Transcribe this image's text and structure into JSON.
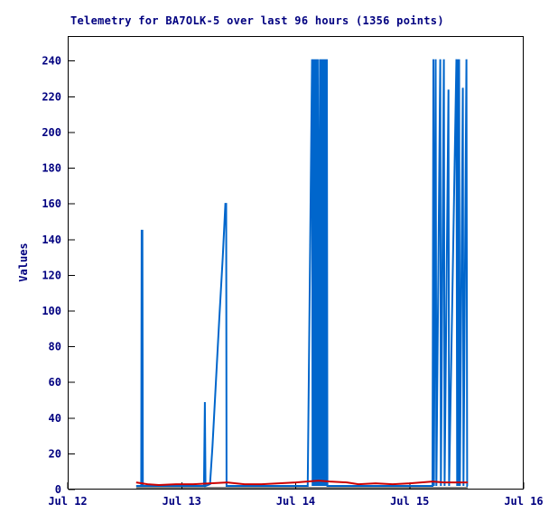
{
  "colors": {
    "background": "#ffffff",
    "frame": "#000000",
    "text": "#000080",
    "series_blue": "#0066cc",
    "series_red": "#cc0000",
    "series_black": "#000000"
  },
  "chart_data": {
    "type": "line",
    "title": "Telemetry for BA7OLK-5 over last 96 hours (1356 points)",
    "ylabel": "Values",
    "xlabel": "",
    "grid": false,
    "legend": "none",
    "x_axis": {
      "min": 0,
      "max": 4,
      "tick_values": [
        0,
        1,
        2,
        3,
        4
      ],
      "tick_labels": [
        "Jul 12",
        "Jul 13",
        "Jul 14",
        "Jul 15",
        "Jul 16"
      ]
    },
    "y_axis": {
      "min": 0,
      "max": 254,
      "tick_min": 0,
      "tick_max": 240,
      "tick_step": 20
    },
    "series": [
      {
        "name": "telemetry-blue",
        "color": "#0066cc",
        "width": 2,
        "points": [
          [
            0.6,
            2
          ],
          [
            0.645,
            2
          ],
          [
            0.649,
            145
          ],
          [
            0.655,
            145
          ],
          [
            0.659,
            2
          ],
          [
            1.195,
            2
          ],
          [
            1.203,
            49
          ],
          [
            1.209,
            2
          ],
          [
            1.248,
            3
          ],
          [
            1.27,
            24
          ],
          [
            1.3,
            60
          ],
          [
            1.33,
            96
          ],
          [
            1.36,
            130
          ],
          [
            1.383,
            160
          ],
          [
            1.39,
            160
          ],
          [
            1.393,
            2
          ],
          [
            2.105,
            2
          ],
          [
            2.143,
            241
          ],
          [
            2.148,
            2
          ],
          [
            2.153,
            241
          ],
          [
            2.158,
            2
          ],
          [
            2.163,
            241
          ],
          [
            2.168,
            2
          ],
          [
            2.173,
            241
          ],
          [
            2.178,
            2
          ],
          [
            2.183,
            241
          ],
          [
            2.188,
            2
          ],
          [
            2.193,
            241
          ],
          [
            2.198,
            145
          ],
          [
            2.203,
            2
          ],
          [
            2.208,
            145
          ],
          [
            2.213,
            241
          ],
          [
            2.218,
            2
          ],
          [
            2.223,
            241
          ],
          [
            2.228,
            2
          ],
          [
            2.233,
            241
          ],
          [
            2.238,
            2
          ],
          [
            2.243,
            241
          ],
          [
            2.248,
            2
          ],
          [
            2.253,
            241
          ],
          [
            2.258,
            2
          ],
          [
            2.263,
            241
          ],
          [
            2.268,
            2
          ],
          [
            2.273,
            241
          ],
          [
            2.278,
            2
          ],
          [
            3.2,
            2
          ],
          [
            3.208,
            241
          ],
          [
            3.213,
            2
          ],
          [
            3.228,
            241
          ],
          [
            3.234,
            2
          ],
          [
            3.268,
            241
          ],
          [
            3.274,
            2
          ],
          [
            3.3,
            241
          ],
          [
            3.306,
            2
          ],
          [
            3.34,
            224
          ],
          [
            3.346,
            2
          ],
          [
            3.41,
            241
          ],
          [
            3.416,
            2
          ],
          [
            3.422,
            241
          ],
          [
            3.428,
            2
          ],
          [
            3.434,
            241
          ],
          [
            3.44,
            2
          ],
          [
            3.466,
            225
          ],
          [
            3.472,
            2
          ],
          [
            3.498,
            241
          ],
          [
            3.504,
            2
          ],
          [
            3.51,
            2
          ]
        ]
      },
      {
        "name": "telemetry-black",
        "color": "#000000",
        "width": 1,
        "points": [
          [
            0.6,
            1
          ],
          [
            1.0,
            1
          ],
          [
            1.5,
            1
          ],
          [
            2.0,
            1
          ],
          [
            2.5,
            1
          ],
          [
            3.0,
            1
          ],
          [
            3.51,
            1
          ]
        ]
      },
      {
        "name": "telemetry-red",
        "color": "#cc0000",
        "width": 2,
        "points": [
          [
            0.6,
            4
          ],
          [
            0.7,
            3
          ],
          [
            0.8,
            2.5
          ],
          [
            0.95,
            3
          ],
          [
            1.1,
            3
          ],
          [
            1.25,
            3.5
          ],
          [
            1.4,
            4
          ],
          [
            1.55,
            3
          ],
          [
            1.7,
            3
          ],
          [
            1.85,
            3.5
          ],
          [
            2.0,
            4
          ],
          [
            2.1,
            4.5
          ],
          [
            2.2,
            5
          ],
          [
            2.3,
            4.5
          ],
          [
            2.45,
            4
          ],
          [
            2.55,
            3
          ],
          [
            2.7,
            3.5
          ],
          [
            2.85,
            3
          ],
          [
            3.0,
            3.5
          ],
          [
            3.1,
            4
          ],
          [
            3.2,
            4.5
          ],
          [
            3.3,
            4
          ],
          [
            3.4,
            4
          ],
          [
            3.51,
            4
          ]
        ]
      }
    ]
  }
}
